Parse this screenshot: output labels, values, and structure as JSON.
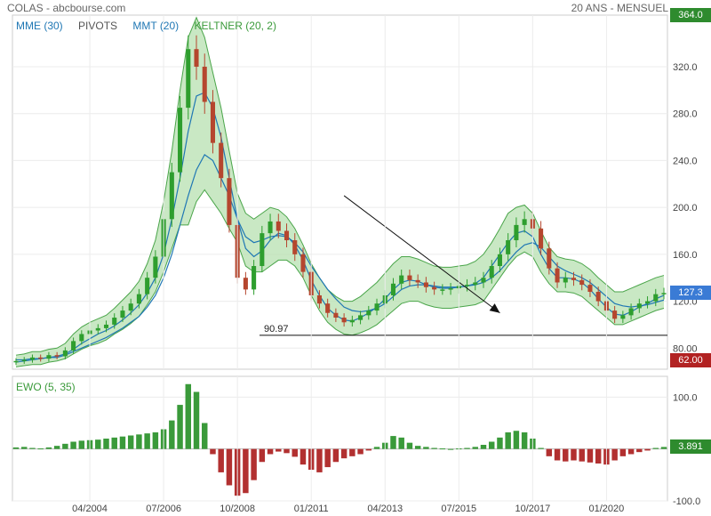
{
  "header": {
    "title": "COLAS - abcbourse.com",
    "period": "20 ANS - MENSUEL"
  },
  "legend_main": [
    {
      "label": "MME (30)",
      "color": "#1f77b4"
    },
    {
      "label": "PIVOTS",
      "color": "#555555"
    },
    {
      "label": "MMT (20)",
      "color": "#1f77b4"
    },
    {
      "label": "KELTNER (20, 2)",
      "color": "#3a9a3a"
    }
  ],
  "legend_ewo": {
    "label": "EWO (5, 35)",
    "color": "#3a9a3a"
  },
  "tags": {
    "top": {
      "text": "364.0",
      "color": "#2e8b2e"
    },
    "last": {
      "text": "127.3",
      "color": "#3a7bd5"
    },
    "bottom": {
      "text": "62.00",
      "color": "#b22222"
    },
    "ewo": {
      "text": "3.891",
      "color": "#2e8b2e"
    }
  },
  "colors": {
    "up": "#2e9e2e",
    "down": "#b5462e",
    "band_fill": "#b7e0b0",
    "band_line": "#4aa54a",
    "ma": "#1f77b4"
  },
  "chart_data": [
    {
      "type": "line",
      "title": "COLAS",
      "ylim": [
        62,
        364
      ],
      "yticks": [
        80,
        120,
        160,
        200,
        240,
        280,
        320
      ],
      "ytick_labels": [
        "80.00",
        "120.0",
        "160.0",
        "200.0",
        "240.0",
        "280.0",
        "320.0"
      ],
      "x": [
        "01/2002",
        "04/2002",
        "07/2002",
        "10/2002",
        "01/2003",
        "04/2003",
        "07/2003",
        "10/2003",
        "01/2004",
        "04/2004",
        "07/2004",
        "10/2004",
        "01/2005",
        "04/2005",
        "07/2005",
        "10/2005",
        "01/2006",
        "04/2006",
        "07/2006",
        "10/2006",
        "01/2007",
        "04/2007",
        "07/2007",
        "10/2007",
        "01/2008",
        "04/2008",
        "07/2008",
        "10/2008",
        "01/2009",
        "04/2009",
        "07/2009",
        "10/2009",
        "01/2010",
        "04/2010",
        "07/2010",
        "10/2010",
        "01/2011",
        "04/2011",
        "07/2011",
        "10/2011",
        "01/2012",
        "04/2012",
        "07/2012",
        "10/2012",
        "01/2013",
        "04/2013",
        "07/2013",
        "10/2013",
        "01/2014",
        "04/2014",
        "07/2014",
        "10/2014",
        "01/2015",
        "04/2015",
        "07/2015",
        "10/2015",
        "01/2016",
        "04/2016",
        "07/2016",
        "10/2016",
        "01/2017",
        "04/2017",
        "07/2017",
        "10/2017",
        "01/2018",
        "04/2018",
        "07/2018",
        "10/2018",
        "01/2019",
        "04/2019",
        "07/2019",
        "10/2019",
        "01/2020",
        "04/2020",
        "07/2020",
        "10/2020",
        "01/2021",
        "04/2021",
        "07/2021",
        "10/2021"
      ],
      "xtick_labels": [
        "04/2004",
        "07/2006",
        "10/2008",
        "01/2011",
        "04/2013",
        "07/2015",
        "10/2017",
        "01/2020"
      ],
      "series": [
        {
          "name": "Close",
          "values": [
            69,
            70,
            72,
            71,
            74,
            73,
            78,
            86,
            92,
            95,
            97,
            100,
            106,
            112,
            118,
            126,
            140,
            158,
            190,
            230,
            285,
            335,
            320,
            290,
            255,
            225,
            185,
            140,
            130,
            150,
            178,
            188,
            180,
            172,
            160,
            145,
            125,
            118,
            110,
            106,
            102,
            104,
            108,
            112,
            118,
            125,
            135,
            142,
            138,
            136,
            132,
            130,
            130,
            131,
            133,
            134,
            136,
            140,
            150,
            160,
            172,
            185,
            190,
            182,
            165,
            148,
            136,
            140,
            138,
            134,
            128,
            120,
            112,
            105,
            108,
            114,
            118,
            120,
            126,
            127
          ]
        },
        {
          "name": "MME (30)",
          "values": [
            70,
            70,
            71,
            71,
            72,
            72,
            74,
            77,
            80,
            83,
            86,
            89,
            93,
            97,
            102,
            107,
            115,
            125,
            140,
            160,
            185,
            210,
            232,
            245,
            240,
            225,
            210,
            190,
            175,
            170,
            172,
            175,
            176,
            175,
            170,
            162,
            150,
            140,
            130,
            122,
            115,
            112,
            111,
            112,
            114,
            118,
            124,
            130,
            133,
            134,
            134,
            133,
            132,
            132,
            132,
            133,
            134,
            136,
            140,
            146,
            154,
            162,
            168,
            170,
            166,
            158,
            150,
            146,
            143,
            140,
            136,
            130,
            124,
            118,
            116,
            115,
            116,
            117,
            119,
            121
          ]
        },
        {
          "name": "MMT (20)",
          "values": [
            68,
            69,
            70,
            71,
            72,
            73,
            75,
            79,
            84,
            88,
            92,
            95,
            99,
            104,
            110,
            117,
            127,
            140,
            160,
            190,
            225,
            265,
            295,
            298,
            285,
            260,
            225,
            190,
            165,
            158,
            163,
            172,
            178,
            176,
            168,
            155,
            138,
            125,
            114,
            108,
            104,
            103,
            106,
            110,
            115,
            122,
            130,
            136,
            138,
            137,
            134,
            132,
            131,
            131,
            132,
            133,
            135,
            140,
            150,
            160,
            170,
            178,
            180,
            175,
            160,
            148,
            140,
            140,
            139,
            136,
            130,
            122,
            115,
            109,
            108,
            111,
            115,
            118,
            122,
            125
          ]
        },
        {
          "name": "KELTNER (20, 2) upper",
          "values": [
            74,
            75,
            77,
            77,
            79,
            80,
            84,
            92,
            98,
            102,
            105,
            108,
            114,
            121,
            128,
            137,
            152,
            172,
            205,
            248,
            300,
            345,
            362,
            345,
            315,
            285,
            248,
            212,
            195,
            190,
            195,
            200,
            198,
            192,
            182,
            168,
            152,
            140,
            130,
            124,
            120,
            120,
            124,
            130,
            136,
            144,
            152,
            158,
            158,
            156,
            153,
            150,
            149,
            149,
            150,
            151,
            154,
            160,
            170,
            182,
            195,
            200,
            202,
            195,
            180,
            166,
            158,
            156,
            155,
            152,
            147,
            140,
            134,
            128,
            128,
            131,
            134,
            137,
            140,
            142
          ]
        },
        {
          "name": "KELTNER (20, 2) lower",
          "values": [
            64,
            65,
            66,
            66,
            68,
            69,
            71,
            75,
            79,
            82,
            84,
            87,
            92,
            96,
            101,
            107,
            117,
            128,
            145,
            165,
            185,
            185,
            205,
            215,
            205,
            195,
            182,
            170,
            150,
            145,
            145,
            150,
            155,
            155,
            150,
            140,
            125,
            112,
            102,
            96,
            92,
            91,
            93,
            96,
            100,
            106,
            112,
            118,
            120,
            120,
            117,
            115,
            114,
            114,
            115,
            116,
            117,
            120,
            130,
            140,
            150,
            158,
            162,
            158,
            145,
            135,
            128,
            128,
            127,
            124,
            118,
            112,
            106,
            100,
            100,
            103,
            106,
            109,
            112,
            114
          ]
        }
      ],
      "annotations": [
        {
          "text": "90.97",
          "y": 90.97,
          "type": "horizontal_line"
        },
        {
          "type": "arrow",
          "from": [
            "01/2012",
            210
          ],
          "to": [
            "10/2016",
            110
          ]
        }
      ],
      "legend": "top-left",
      "grid": true
    },
    {
      "type": "bar",
      "title": "EWO (5, 35)",
      "ylim": [
        -100,
        140
      ],
      "yticks": [
        -100,
        100
      ],
      "ytick_labels": [
        "-100.0",
        "100.0"
      ],
      "x": [
        "01/2002",
        "04/2002",
        "07/2002",
        "10/2002",
        "01/2003",
        "04/2003",
        "07/2003",
        "10/2003",
        "01/2004",
        "04/2004",
        "07/2004",
        "10/2004",
        "01/2005",
        "04/2005",
        "07/2005",
        "10/2005",
        "01/2006",
        "04/2006",
        "07/2006",
        "10/2006",
        "01/2007",
        "04/2007",
        "07/2007",
        "10/2007",
        "01/2008",
        "04/2008",
        "07/2008",
        "10/2008",
        "01/2009",
        "04/2009",
        "07/2009",
        "10/2009",
        "01/2010",
        "04/2010",
        "07/2010",
        "10/2010",
        "01/2011",
        "04/2011",
        "07/2011",
        "10/2011",
        "01/2012",
        "04/2012",
        "07/2012",
        "10/2012",
        "01/2013",
        "04/2013",
        "07/2013",
        "10/2013",
        "01/2014",
        "04/2014",
        "07/2014",
        "10/2014",
        "01/2015",
        "04/2015",
        "07/2015",
        "10/2015",
        "01/2016",
        "04/2016",
        "07/2016",
        "10/2016",
        "01/2017",
        "04/2017",
        "07/2017",
        "10/2017",
        "01/2018",
        "04/2018",
        "07/2018",
        "10/2018",
        "01/2019",
        "04/2019",
        "07/2019",
        "10/2019",
        "01/2020",
        "04/2020",
        "07/2020",
        "10/2020",
        "01/2021",
        "04/2021",
        "07/2021",
        "10/2021"
      ],
      "values": [
        3,
        4,
        2,
        1,
        3,
        6,
        10,
        14,
        16,
        17,
        18,
        20,
        22,
        24,
        26,
        28,
        30,
        32,
        38,
        55,
        85,
        125,
        110,
        50,
        -10,
        -45,
        -70,
        -90,
        -85,
        -60,
        -25,
        -10,
        -5,
        -8,
        -15,
        -30,
        -40,
        -45,
        -35,
        -25,
        -18,
        -14,
        -10,
        -3,
        4,
        12,
        25,
        22,
        12,
        6,
        4,
        2,
        1,
        0,
        1,
        2,
        4,
        8,
        14,
        22,
        32,
        35,
        32,
        20,
        2,
        -14,
        -22,
        -24,
        -22,
        -24,
        -26,
        -28,
        -30,
        -22,
        -14,
        -10,
        -6,
        -3,
        2,
        3.891
      ],
      "colors": {
        "positive": "#3a9a3a",
        "negative": "#b23030"
      },
      "legend": "top-left",
      "grid": true
    }
  ]
}
